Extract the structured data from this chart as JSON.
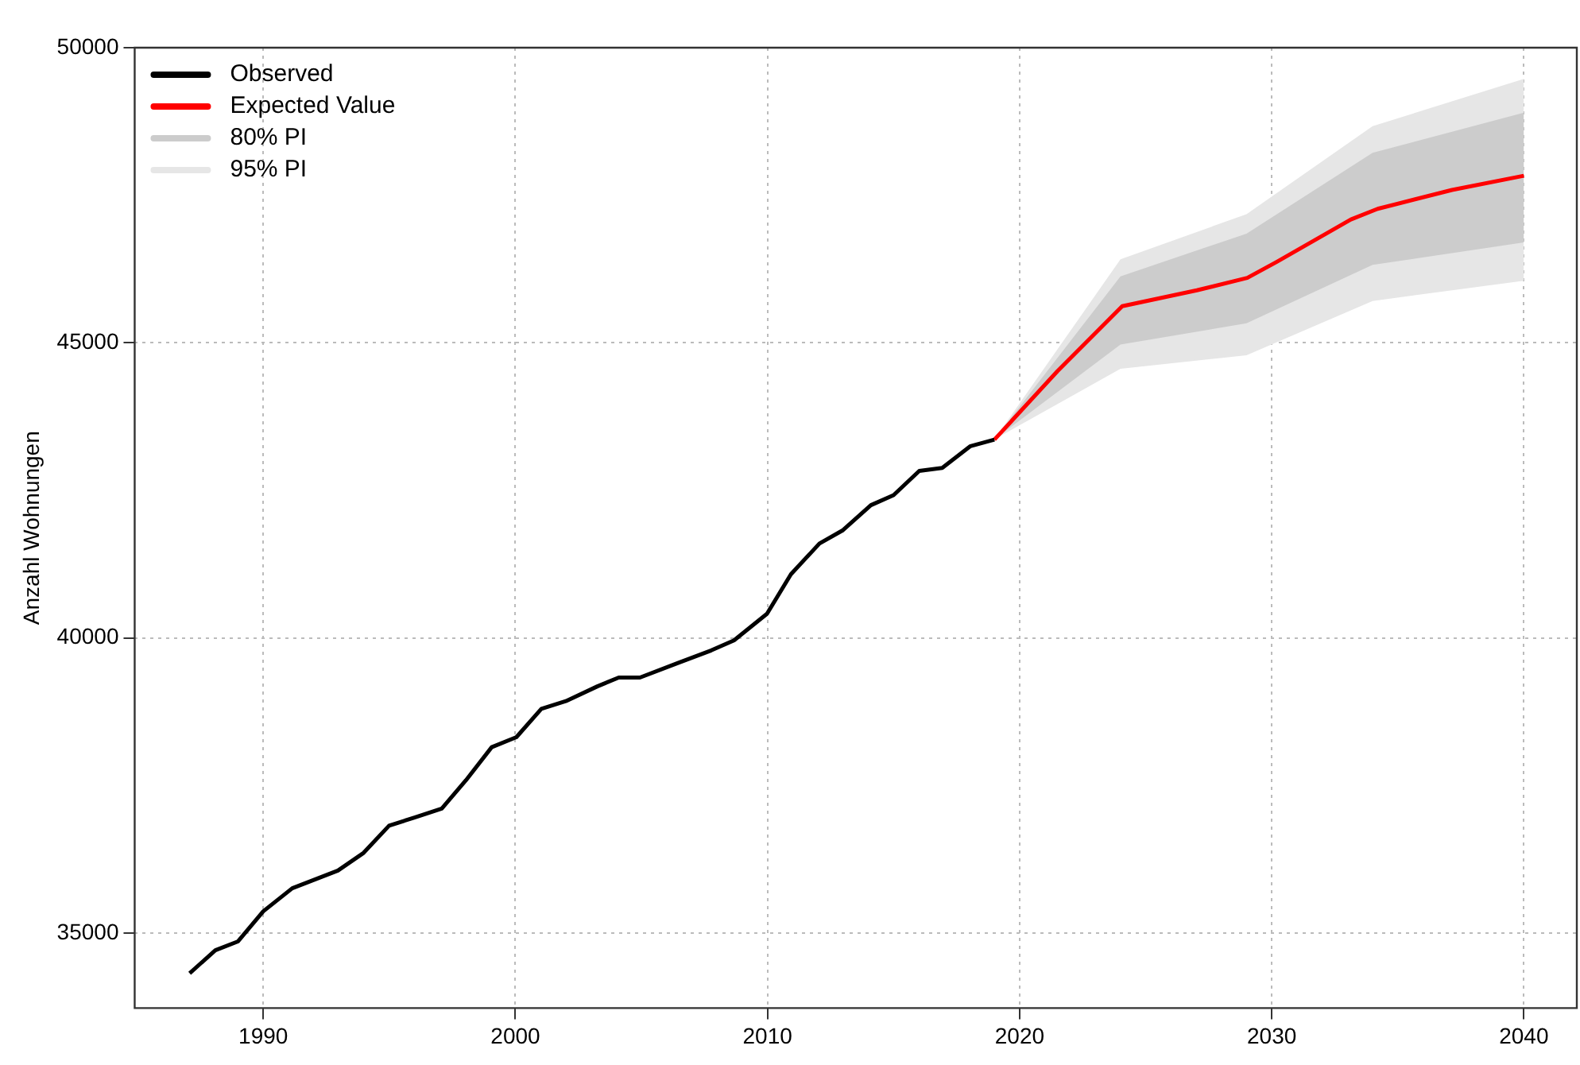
{
  "chart_data": {
    "type": "line",
    "ylabel": "Anzahl Wohnungen",
    "xlim": [
      1984.9,
      2042.1
    ],
    "xticks": [
      1990,
      2000,
      2010,
      2020,
      2030,
      2040
    ],
    "ylim": [
      33730,
      50000
    ],
    "yticks": [
      35000,
      40000,
      45000,
      50000
    ],
    "grid": true,
    "legend": "top left",
    "line_style": "solid",
    "marker": "none",
    "series": [
      {
        "name": "95% PI",
        "type": "area",
        "color": "#e6e6e6",
        "x": [
          2019,
          2024,
          2029,
          2034,
          2040
        ],
        "values": [
          null,
          null,
          null,
          null,
          null
        ],
        "lower": [
          43365,
          44560,
          44790,
          45710,
          46050
        ],
        "upper": [
          43365,
          46415,
          47180,
          48670,
          49470
        ]
      },
      {
        "name": "80% PI",
        "type": "area",
        "color": "#cccccc",
        "x": [
          2019,
          2024,
          2029,
          2034,
          2040
        ],
        "values": [
          null,
          null,
          null,
          null,
          null
        ],
        "lower": [
          43365,
          44970,
          45330,
          46320,
          46700
        ],
        "upper": [
          43365,
          46125,
          46850,
          48220,
          48900
        ]
      },
      {
        "name": "Observed",
        "type": "line",
        "color": "#000000",
        "x": [
          1987.08,
          1988.1,
          1989.0,
          1990.0,
          1991.15,
          1992.96,
          1993.98,
          1994.99,
          1996.0,
          1997.08,
          1998.04,
          1999.06,
          2000.04,
          2001.03,
          2002.0,
          2003.25,
          2004.1,
          2004.94,
          2006.41,
          2007.77,
          2008.67,
          2009.98,
          2010.93,
          2012.06,
          2012.97,
          2014.1,
          2015.0,
          2016.02,
          2016.93,
          2018.05,
          2019.0
        ],
        "values": [
          34320,
          34710,
          34860,
          35370,
          35760,
          36060,
          36360,
          36820,
          36960,
          37110,
          37590,
          38150,
          38320,
          38800,
          38930,
          39180,
          39330,
          39330,
          39570,
          39790,
          39960,
          40410,
          41080,
          41600,
          41820,
          42250,
          42420,
          42830,
          42880,
          43250,
          43360
        ]
      },
      {
        "name": "Expected Value",
        "type": "line",
        "color": "#ff0000",
        "x": [
          2019.0,
          2021.5,
          2024.07,
          2027.03,
          2029.03,
          2030.19,
          2033.14,
          2034.2,
          2037.15,
          2040.0
        ],
        "values": [
          43360,
          44520,
          45620,
          45890,
          46100,
          46370,
          47090,
          47270,
          47590,
          47830
        ]
      }
    ]
  }
}
